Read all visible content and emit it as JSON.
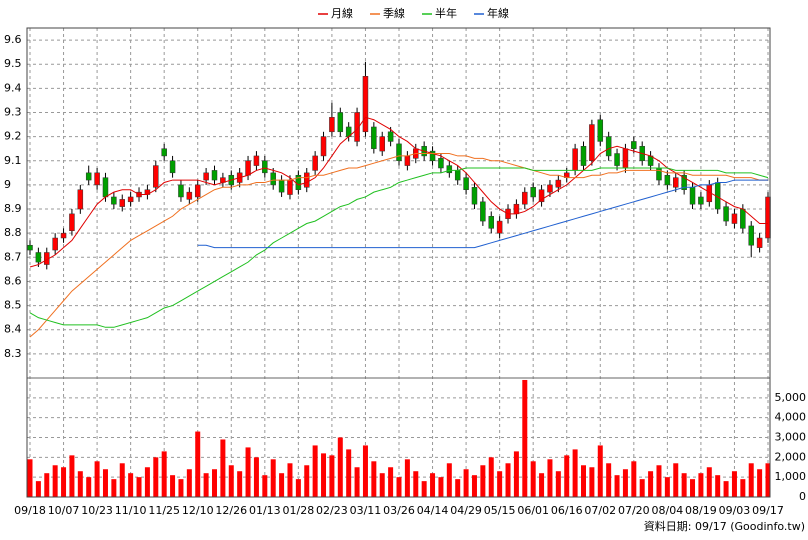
{
  "chart_data": {
    "type": "candlestick",
    "categories": [
      "09/18",
      null,
      null,
      null,
      "10/07",
      null,
      null,
      null,
      "10/23",
      null,
      null,
      null,
      "11/10",
      null,
      null,
      null,
      "11/25",
      null,
      null,
      null,
      "12/10",
      null,
      null,
      null,
      "12/26",
      null,
      null,
      null,
      "01/13",
      null,
      null,
      null,
      "01/28",
      null,
      null,
      null,
      "02/23",
      null,
      null,
      null,
      "03/11",
      null,
      null,
      null,
      "03/26",
      null,
      null,
      null,
      "04/14",
      null,
      null,
      null,
      "04/29",
      null,
      null,
      null,
      "05/15",
      null,
      null,
      null,
      "06/01",
      null,
      null,
      null,
      "06/16",
      null,
      null,
      null,
      "07/02",
      null,
      null,
      null,
      "07/20",
      null,
      null,
      null,
      "08/04",
      null,
      null,
      null,
      "08/19",
      null,
      null,
      null,
      "09/03",
      null,
      null,
      null,
      "09/17"
    ],
    "open": [
      8.75,
      8.72,
      8.67,
      8.73,
      8.78,
      8.81,
      8.9,
      9.05,
      9.0,
      9.03,
      8.95,
      8.91,
      8.93,
      8.95,
      8.96,
      8.99,
      9.15,
      9.1,
      9.0,
      8.94,
      8.95,
      9.02,
      9.06,
      9.01,
      9.04,
      9.01,
      9.04,
      9.08,
      9.1,
      9.05,
      9.02,
      8.96,
      9.04,
      8.99,
      9.06,
      9.12,
      9.22,
      9.3,
      9.24,
      9.18,
      9.22,
      9.24,
      9.14,
      9.22,
      9.17,
      9.08,
      9.11,
      9.16,
      9.14,
      9.11,
      9.08,
      9.06,
      9.03,
      8.99,
      8.93,
      8.87,
      8.8,
      8.86,
      8.88,
      8.92,
      8.99,
      8.93,
      8.97,
      8.99,
      9.03,
      9.06,
      9.16,
      9.1,
      9.27,
      9.2,
      9.13,
      9.07,
      9.18,
      9.16,
      9.12,
      9.07,
      9.04,
      8.99,
      9.04,
      8.99,
      8.95,
      8.93,
      9.01,
      8.91,
      8.84,
      8.9,
      8.83,
      8.74,
      8.78
    ],
    "high": [
      8.77,
      8.74,
      8.74,
      8.8,
      8.82,
      8.9,
      9.0,
      9.08,
      9.07,
      9.05,
      8.97,
      8.96,
      8.97,
      8.99,
      9.0,
      9.1,
      9.17,
      9.12,
      9.02,
      8.99,
      9.02,
      9.07,
      9.08,
      9.05,
      9.06,
      9.07,
      9.12,
      9.14,
      9.12,
      9.07,
      9.04,
      9.04,
      9.06,
      9.07,
      9.14,
      9.22,
      9.34,
      9.32,
      9.26,
      9.32,
      9.51,
      9.26,
      9.22,
      9.24,
      9.19,
      9.14,
      9.17,
      9.18,
      9.16,
      9.13,
      9.1,
      9.08,
      9.05,
      9.01,
      8.95,
      8.89,
      8.87,
      8.92,
      8.94,
      8.99,
      9.01,
      9.0,
      9.02,
      9.04,
      9.07,
      9.17,
      9.18,
      9.27,
      9.29,
      9.22,
      9.15,
      9.17,
      9.2,
      9.18,
      9.14,
      9.09,
      9.06,
      9.05,
      9.06,
      9.01,
      8.97,
      9.02,
      9.03,
      8.93,
      8.9,
      8.92,
      8.85,
      8.8,
      8.97
    ],
    "low": [
      8.71,
      8.66,
      8.65,
      8.71,
      8.76,
      8.79,
      8.88,
      9.0,
      8.98,
      8.93,
      8.9,
      8.89,
      8.91,
      8.93,
      8.94,
      8.97,
      9.1,
      9.03,
      8.93,
      8.92,
      8.93,
      9.0,
      9.0,
      8.99,
      8.98,
      8.99,
      9.02,
      9.06,
      9.03,
      8.98,
      8.95,
      8.94,
      8.96,
      8.97,
      9.04,
      9.1,
      9.2,
      9.2,
      9.18,
      9.16,
      9.2,
      9.13,
      9.12,
      9.16,
      9.08,
      9.06,
      9.09,
      9.1,
      9.08,
      9.05,
      9.03,
      9.0,
      8.96,
      8.9,
      8.83,
      8.8,
      8.78,
      8.84,
      8.86,
      8.9,
      8.93,
      8.91,
      8.95,
      8.97,
      9.01,
      9.04,
      9.06,
      9.08,
      9.16,
      9.1,
      9.06,
      9.05,
      9.13,
      9.08,
      9.06,
      9.0,
      8.98,
      8.97,
      8.96,
      8.9,
      8.9,
      8.91,
      8.88,
      8.83,
      8.82,
      8.8,
      8.7,
      8.72,
      8.76
    ],
    "close": [
      8.73,
      8.68,
      8.72,
      8.78,
      8.8,
      8.88,
      8.98,
      9.02,
      9.05,
      8.95,
      8.92,
      8.94,
      8.95,
      8.97,
      8.98,
      9.08,
      9.12,
      9.05,
      8.95,
      8.97,
      9.0,
      9.05,
      9.02,
      9.03,
      9.0,
      9.05,
      9.1,
      9.12,
      9.05,
      9.0,
      8.97,
      9.02,
      8.98,
      9.05,
      9.12,
      9.2,
      9.28,
      9.22,
      9.2,
      9.3,
      9.45,
      9.15,
      9.2,
      9.18,
      9.1,
      9.12,
      9.15,
      9.12,
      9.1,
      9.07,
      9.05,
      9.02,
      8.98,
      8.92,
      8.85,
      8.82,
      8.85,
      8.9,
      8.92,
      8.97,
      8.95,
      8.98,
      9.0,
      9.02,
      9.05,
      9.15,
      9.08,
      9.25,
      9.18,
      9.12,
      9.08,
      9.15,
      9.15,
      9.1,
      9.08,
      9.02,
      9.0,
      9.03,
      8.98,
      8.92,
      8.92,
      9.0,
      8.9,
      8.85,
      8.88,
      8.82,
      8.75,
      8.78,
      8.95
    ],
    "volume": [
      1900,
      800,
      1200,
      1600,
      1500,
      2100,
      1300,
      1000,
      1800,
      1400,
      900,
      1700,
      1200,
      1000,
      1500,
      2000,
      2300,
      1100,
      900,
      1400,
      3300,
      1200,
      1400,
      2900,
      1600,
      1300,
      2500,
      2000,
      1100,
      1900,
      1200,
      1700,
      900,
      1600,
      2600,
      2200,
      2100,
      3000,
      2400,
      1500,
      2600,
      1800,
      1200,
      1500,
      1000,
      1900,
      1300,
      800,
      1200,
      1000,
      1700,
      900,
      1400,
      1100,
      1600,
      2000,
      1300,
      1700,
      2300,
      5900,
      1800,
      1200,
      1900,
      1300,
      2100,
      2400,
      1600,
      1500,
      2600,
      1700,
      1100,
      1400,
      1800,
      900,
      1300,
      1600,
      1000,
      1700,
      1200,
      900,
      1200,
      1500,
      1100,
      800,
      1300,
      900,
      1700,
      1400,
      1700
    ],
    "up_color": "#ff0000",
    "down_color": "#00a000",
    "volume_color": "#ff0000",
    "series": [
      {
        "name": "月線",
        "color": "#e00000",
        "values": [
          8.66,
          8.67,
          8.69,
          8.71,
          8.74,
          8.77,
          8.82,
          8.87,
          8.92,
          8.95,
          8.97,
          8.98,
          8.98,
          8.96,
          8.96,
          8.98,
          9.01,
          9.02,
          9.02,
          9.02,
          9.02,
          9.01,
          9.0,
          9.01,
          9.02,
          9.03,
          9.04,
          9.06,
          9.07,
          9.06,
          9.05,
          9.03,
          9.0,
          9.01,
          9.03,
          9.07,
          9.12,
          9.17,
          9.2,
          9.23,
          9.28,
          9.27,
          9.25,
          9.23,
          9.2,
          9.18,
          9.15,
          9.14,
          9.13,
          9.12,
          9.1,
          9.08,
          9.05,
          9.01,
          8.97,
          8.93,
          8.9,
          8.88,
          8.88,
          8.89,
          8.91,
          8.94,
          8.96,
          8.98,
          9.0,
          9.03,
          9.06,
          9.09,
          9.13,
          9.15,
          9.16,
          9.15,
          9.14,
          9.13,
          9.12,
          9.1,
          9.07,
          9.05,
          9.03,
          9.01,
          8.99,
          8.97,
          8.95,
          8.93,
          8.91,
          8.9,
          8.87,
          8.84,
          8.84
        ]
      },
      {
        "name": "季線",
        "color": "#f07020",
        "values": [
          8.37,
          8.4,
          8.44,
          8.48,
          8.52,
          8.56,
          8.59,
          8.62,
          8.65,
          8.68,
          8.71,
          8.74,
          8.77,
          8.79,
          8.81,
          8.83,
          8.85,
          8.87,
          8.9,
          8.92,
          8.94,
          8.96,
          8.98,
          8.99,
          8.99,
          9.0,
          9.0,
          9.01,
          9.01,
          9.02,
          9.02,
          9.02,
          9.03,
          9.03,
          9.04,
          9.04,
          9.05,
          9.06,
          9.07,
          9.07,
          9.08,
          9.09,
          9.1,
          9.11,
          9.12,
          9.12,
          9.13,
          9.13,
          9.13,
          9.13,
          9.13,
          9.12,
          9.12,
          9.11,
          9.11,
          9.1,
          9.1,
          9.09,
          9.08,
          9.07,
          9.06,
          9.05,
          9.04,
          9.04,
          9.03,
          9.03,
          9.03,
          9.04,
          9.04,
          9.05,
          9.05,
          9.06,
          9.06,
          9.06,
          9.06,
          9.06,
          9.05,
          9.05,
          9.05,
          9.04,
          9.04,
          9.04,
          9.04,
          9.04,
          9.03,
          9.03,
          9.03,
          9.02,
          9.02
        ]
      },
      {
        "name": "半年",
        "color": "#20c020",
        "values": [
          8.47,
          8.45,
          8.44,
          8.43,
          8.42,
          8.42,
          8.42,
          8.42,
          8.42,
          8.41,
          8.41,
          8.42,
          8.43,
          8.44,
          8.45,
          8.47,
          8.49,
          8.5,
          8.52,
          8.54,
          8.56,
          8.58,
          8.6,
          8.62,
          8.64,
          8.66,
          8.68,
          8.71,
          8.73,
          8.76,
          8.78,
          8.8,
          8.82,
          8.84,
          8.85,
          8.87,
          8.89,
          8.91,
          8.92,
          8.94,
          8.95,
          8.97,
          8.98,
          8.99,
          9.01,
          9.02,
          9.03,
          9.04,
          9.05,
          9.05,
          9.06,
          9.06,
          9.07,
          9.07,
          9.07,
          9.07,
          9.07,
          9.07,
          9.07,
          9.07,
          9.06,
          9.06,
          9.06,
          9.06,
          9.06,
          9.06,
          9.06,
          9.06,
          9.07,
          9.07,
          9.07,
          9.07,
          9.07,
          9.07,
          9.07,
          9.07,
          9.07,
          9.06,
          9.06,
          9.06,
          9.06,
          9.06,
          9.06,
          9.05,
          9.05,
          9.05,
          9.05,
          9.04,
          9.03
        ]
      },
      {
        "name": "年線",
        "color": "#2060d0",
        "values": [
          null,
          null,
          null,
          null,
          null,
          null,
          null,
          null,
          null,
          null,
          null,
          null,
          null,
          null,
          null,
          null,
          null,
          null,
          null,
          null,
          8.75,
          8.75,
          8.74,
          8.74,
          8.74,
          8.74,
          8.74,
          8.74,
          8.74,
          8.74,
          8.74,
          8.74,
          8.74,
          8.74,
          8.74,
          8.74,
          8.74,
          8.74,
          8.74,
          8.74,
          8.74,
          8.74,
          8.74,
          8.74,
          8.74,
          8.74,
          8.74,
          8.74,
          8.74,
          8.74,
          8.74,
          8.74,
          8.74,
          8.74,
          8.75,
          8.76,
          8.77,
          8.78,
          8.79,
          8.8,
          8.81,
          8.82,
          8.83,
          8.84,
          8.85,
          8.86,
          8.87,
          8.88,
          8.89,
          8.9,
          8.91,
          8.92,
          8.93,
          8.94,
          8.95,
          8.96,
          8.97,
          8.98,
          8.99,
          8.99,
          9.0,
          9.0,
          9.01,
          9.01,
          9.02,
          9.02,
          9.02,
          9.02,
          9.02
        ]
      }
    ],
    "ylim": [
      8.2,
      9.65
    ],
    "yticks": [
      8.3,
      8.4,
      8.5,
      8.6,
      8.7,
      8.8,
      8.9,
      9,
      9.1,
      9.2,
      9.3,
      9.4,
      9.5,
      9.6
    ],
    "y2lim": [
      0,
      6000
    ],
    "y2ticks": [
      0,
      {
        "value": 1000,
        "label": "1,000"
      },
      {
        "value": 2000,
        "label": "2,000"
      },
      {
        "value": 3000,
        "label": "3,000"
      },
      {
        "value": 4000,
        "label": "4,000"
      },
      {
        "value": 5000,
        "label": "5,000"
      }
    ],
    "grid": true,
    "legend": "top",
    "source": "資料日期: 09/17 (Goodinfo.tw)"
  }
}
